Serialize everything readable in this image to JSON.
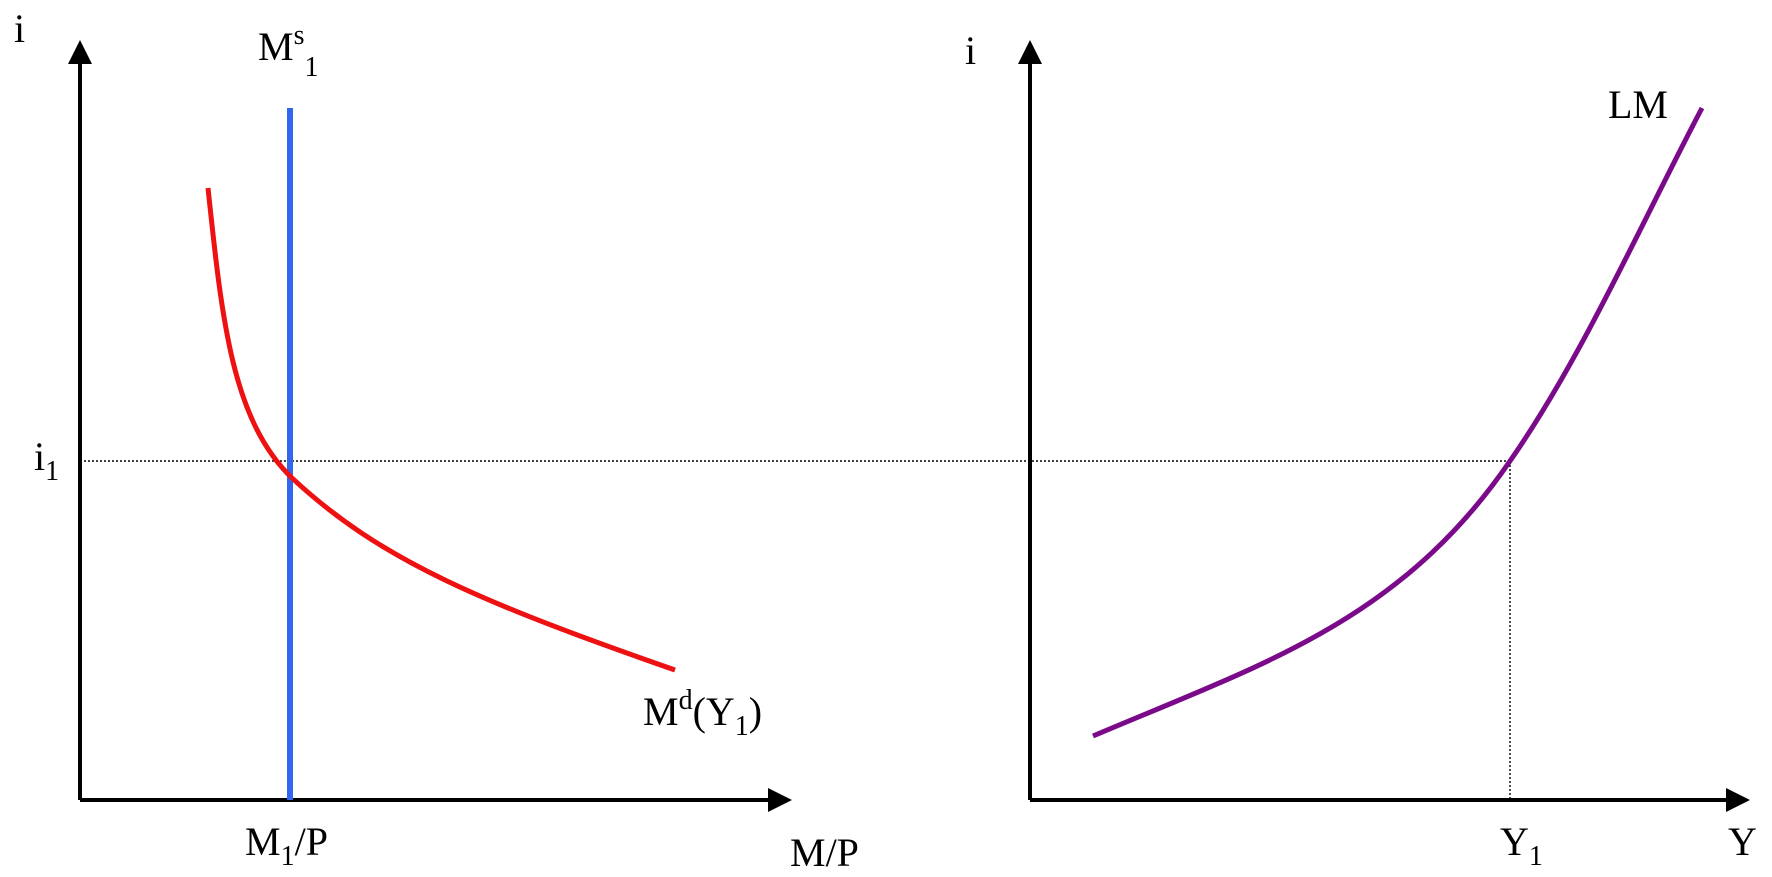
{
  "left_panel": {
    "y_axis_label": "i",
    "x_axis_label": "M/P",
    "money_supply_label": {
      "main": "M",
      "sup": "s",
      "sub": "1"
    },
    "money_demand_label": {
      "main": "M",
      "sup": "d",
      "open": "(Y",
      "sub": "1",
      "close": ")"
    },
    "equilibrium_rate_label": {
      "main": "i",
      "sub": "1"
    },
    "real_balance_label": {
      "main": "M",
      "sub": "1",
      "rest": "/P"
    }
  },
  "right_panel": {
    "y_axis_label": "i",
    "x_axis_label": "Y",
    "lm_label": "LM",
    "income_label": {
      "main": "Y",
      "sub": "1"
    }
  },
  "colors": {
    "axis": "#000000",
    "money_supply": "#3366ee",
    "money_demand": "#ee1111",
    "lm_curve": "#7a0a8a",
    "guide": "#000000"
  }
}
